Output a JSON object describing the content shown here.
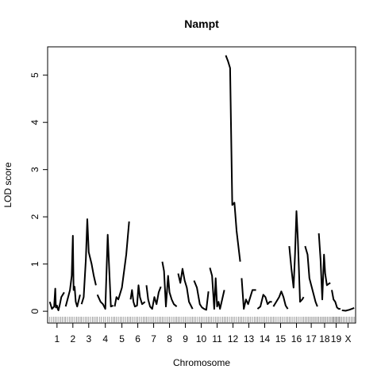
{
  "chart_data": {
    "type": "line",
    "title": "Nampt",
    "xlabel": "Chromosome",
    "ylabel": "LOD score",
    "ylim": [
      -0.25,
      5.6
    ],
    "y_ticks": [
      0,
      1,
      2,
      3,
      4,
      5
    ],
    "grid": false,
    "legend": "none",
    "line_color": "#000000",
    "chromosomes": [
      {
        "name": "1",
        "start": 0,
        "end": 1.0,
        "x": [
          0,
          0.15,
          0.3,
          0.38,
          0.42,
          0.5,
          0.55,
          0.6,
          0.7,
          0.8,
          1.0
        ],
        "lod": [
          0.2,
          0.05,
          0.1,
          0.48,
          0.08,
          0.12,
          0.05,
          0.02,
          0.15,
          0.3,
          0.4
        ]
      },
      {
        "name": "2",
        "start": 1.1,
        "end": 2.1,
        "x": [
          0,
          0.3,
          0.42,
          0.5,
          0.55,
          0.62,
          0.7,
          0.8,
          1.0
        ],
        "lod": [
          0.1,
          0.45,
          0.75,
          1.6,
          0.45,
          0.52,
          0.2,
          0.1,
          0.35
        ]
      },
      {
        "name": "3",
        "start": 2.2,
        "end": 3.2,
        "x": [
          0,
          0.15,
          0.3,
          0.4,
          0.5,
          0.7,
          0.85,
          1.0
        ],
        "lod": [
          0.15,
          0.3,
          1.1,
          1.95,
          1.25,
          1.0,
          0.75,
          0.55
        ]
      },
      {
        "name": "4",
        "start": 3.3,
        "end": 4.4,
        "x": [
          0,
          0.2,
          0.35,
          0.5,
          0.65,
          0.85,
          1.0
        ],
        "lod": [
          0.35,
          0.2,
          0.15,
          0.05,
          1.62,
          0.1,
          0.12
        ]
      },
      {
        "name": "5",
        "start": 4.5,
        "end": 5.5,
        "x": [
          0,
          0.12,
          0.25,
          0.35,
          0.5,
          0.65,
          0.8,
          1.0
        ],
        "lod": [
          0.1,
          0.3,
          0.25,
          0.35,
          0.5,
          0.85,
          1.2,
          1.9
        ]
      },
      {
        "name": "6",
        "start": 5.6,
        "end": 6.6,
        "x": [
          0,
          0.1,
          0.2,
          0.3,
          0.45,
          0.55,
          0.65,
          0.8,
          1.0
        ],
        "lod": [
          0.25,
          0.45,
          0.2,
          0.1,
          0.12,
          0.55,
          0.3,
          0.15,
          0.2
        ]
      },
      {
        "name": "7",
        "start": 6.7,
        "end": 7.7,
        "x": [
          0,
          0.12,
          0.25,
          0.4,
          0.55,
          0.7,
          0.85,
          1.0
        ],
        "lod": [
          0.55,
          0.25,
          0.1,
          0.05,
          0.3,
          0.15,
          0.4,
          0.52
        ]
      },
      {
        "name": "8",
        "start": 7.8,
        "end": 8.8,
        "x": [
          0,
          0.12,
          0.25,
          0.4,
          0.5,
          0.65,
          0.8,
          1.0
        ],
        "lod": [
          1.05,
          0.85,
          0.1,
          0.75,
          0.4,
          0.25,
          0.15,
          0.1
        ]
      },
      {
        "name": "9",
        "start": 8.9,
        "end": 9.9,
        "x": [
          0,
          0.15,
          0.3,
          0.45,
          0.6,
          0.75,
          1.0
        ],
        "lod": [
          0.8,
          0.6,
          0.9,
          0.65,
          0.5,
          0.2,
          0.05
        ]
      },
      {
        "name": "10",
        "start": 10.0,
        "end": 11.0,
        "x": [
          0,
          0.2,
          0.4,
          0.55,
          0.7,
          0.85,
          1.0
        ],
        "lod": [
          0.65,
          0.5,
          0.15,
          0.08,
          0.05,
          0.03,
          0.42
        ]
      },
      {
        "name": "11",
        "start": 11.1,
        "end": 12.1,
        "x": [
          0,
          0.15,
          0.3,
          0.4,
          0.5,
          0.6,
          0.7,
          0.85,
          1.0
        ],
        "lod": [
          0.92,
          0.75,
          0.05,
          0.7,
          0.1,
          0.2,
          0.05,
          0.25,
          0.45
        ]
      },
      {
        "name": "12",
        "start": 12.2,
        "end": 13.2,
        "x": [
          0,
          0.15,
          0.3,
          0.45,
          0.6,
          0.75,
          1.0
        ],
        "lod": [
          5.42,
          5.3,
          5.15,
          2.25,
          2.3,
          1.7,
          1.05
        ]
      },
      {
        "name": "13",
        "start": 13.3,
        "end": 14.3,
        "x": [
          0,
          0.15,
          0.3,
          0.45,
          0.6,
          0.75,
          0.9,
          1.0
        ],
        "lod": [
          0.7,
          0.05,
          0.25,
          0.15,
          0.3,
          0.45,
          0.45,
          0.45
        ]
      },
      {
        "name": "14",
        "start": 14.4,
        "end": 15.4,
        "x": [
          0,
          0.2,
          0.4,
          0.55,
          0.7,
          0.85,
          1.0
        ],
        "lod": [
          0.05,
          0.1,
          0.35,
          0.3,
          0.15,
          0.2,
          0.2
        ]
      },
      {
        "name": "15",
        "start": 15.5,
        "end": 16.5,
        "x": [
          0,
          0.2,
          0.4,
          0.55,
          0.7,
          0.85,
          1.0
        ],
        "lod": [
          0.1,
          0.2,
          0.3,
          0.42,
          0.3,
          0.12,
          0.05
        ]
      },
      {
        "name": "16",
        "start": 16.6,
        "end": 17.6,
        "x": [
          0,
          0.15,
          0.3,
          0.4,
          0.5,
          0.6,
          0.75,
          0.9,
          1.0
        ],
        "lod": [
          1.38,
          0.9,
          0.5,
          1.2,
          2.12,
          1.5,
          0.2,
          0.25,
          0.3
        ]
      },
      {
        "name": "17",
        "start": 17.7,
        "end": 18.55,
        "x": [
          0,
          0.2,
          0.35,
          0.5,
          0.7,
          0.85,
          1.0
        ],
        "lod": [
          1.38,
          1.2,
          0.7,
          0.55,
          0.35,
          0.2,
          0.1
        ]
      },
      {
        "name": "18",
        "start": 18.65,
        "end": 19.45,
        "x": [
          0,
          0.15,
          0.3,
          0.45,
          0.55,
          0.7,
          0.85,
          1.0
        ],
        "lod": [
          1.65,
          1.1,
          0.25,
          1.2,
          0.8,
          0.55,
          0.58,
          0.6
        ]
      },
      {
        "name": "19",
        "start": 19.55,
        "end": 20.15,
        "x": [
          0,
          0.2,
          0.4,
          0.6,
          0.8,
          1.0
        ],
        "lod": [
          0.45,
          0.25,
          0.2,
          0.08,
          0.05,
          0.05
        ]
      },
      {
        "name": "X",
        "start": 20.25,
        "end": 21.1,
        "x": [
          0,
          0.3,
          0.6,
          0.8,
          1.0
        ],
        "lod": [
          0.02,
          0.01,
          0.03,
          0.05,
          0.07
        ]
      }
    ],
    "xlim": [
      -0.15,
      21.2
    ]
  }
}
